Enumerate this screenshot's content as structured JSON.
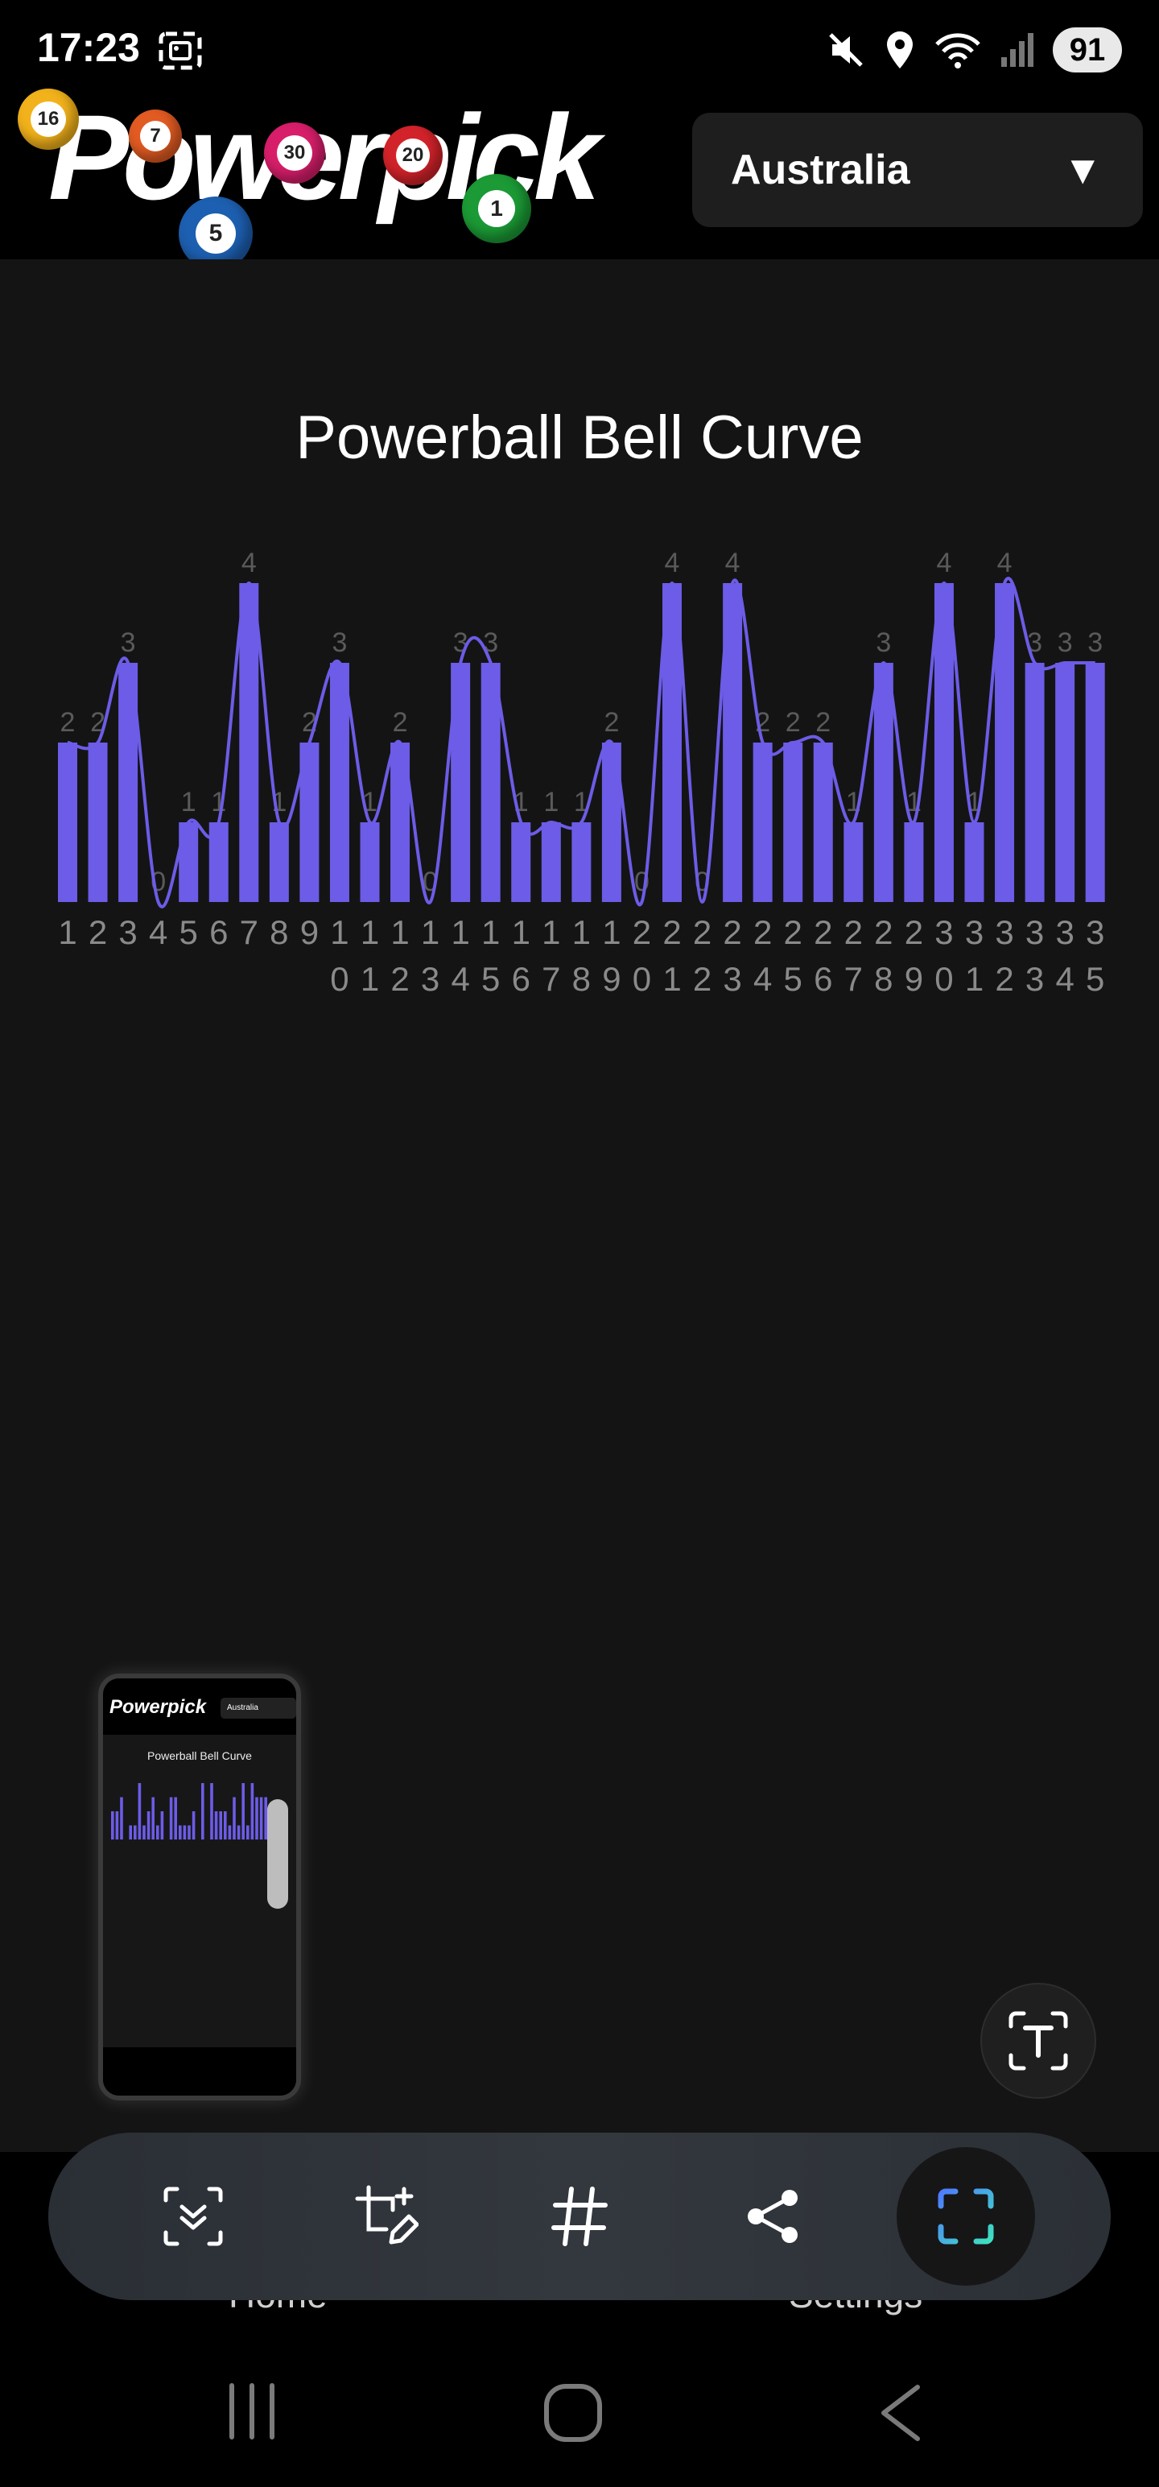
{
  "status_bar": {
    "time": "17:23",
    "battery": "91",
    "icons": [
      "screenshot-icon",
      "mute-icon",
      "location-icon",
      "wifi-icon",
      "signal-icon",
      "battery-icon"
    ]
  },
  "header": {
    "logo_text": "Powerpick",
    "logo_balls": [
      "16",
      "7",
      "5",
      "30",
      "20",
      "1"
    ],
    "country_select": {
      "value": "Australia",
      "arrow": "▼"
    }
  },
  "chart": {
    "title": "Powerball Bell Curve"
  },
  "chart_data": {
    "type": "bar",
    "title": "Powerball Bell Curve",
    "categories": [
      "1",
      "2",
      "3",
      "4",
      "5",
      "6",
      "7",
      "8",
      "9",
      "10",
      "11",
      "12",
      "13",
      "14",
      "15",
      "16",
      "17",
      "18",
      "19",
      "20",
      "21",
      "22",
      "23",
      "24",
      "25",
      "26",
      "27",
      "28",
      "29",
      "30",
      "31",
      "32",
      "33",
      "34",
      "35"
    ],
    "values": [
      2,
      2,
      3,
      0,
      1,
      1,
      4,
      1,
      2,
      3,
      1,
      2,
      0,
      3,
      3,
      1,
      1,
      1,
      2,
      0,
      4,
      0,
      4,
      2,
      2,
      2,
      1,
      3,
      1,
      4,
      1,
      4,
      3,
      3,
      3
    ],
    "ylim": [
      0,
      4
    ],
    "overlay": "smooth-line",
    "bar_color": "#6c5ce7",
    "grid": false,
    "legend": "none"
  },
  "thumbnail": {
    "title": "Powerball Bell Curve",
    "country": "Australia"
  },
  "bottom_nav": {
    "home_label": "Home",
    "settings_label": "Settings"
  },
  "toolbar": {
    "tools": [
      "scroll-capture-icon",
      "edit-crop-icon",
      "hashtag-icon",
      "share-icon",
      "smart-select-icon"
    ]
  }
}
